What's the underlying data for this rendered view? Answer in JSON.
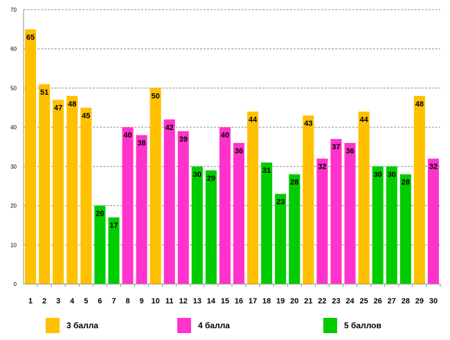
{
  "chart_data": {
    "type": "bar",
    "title": "",
    "xlabel": "",
    "ylabel": "",
    "ylim": [
      0,
      70
    ],
    "yticks": [
      0,
      10,
      20,
      30,
      40,
      50,
      60,
      70
    ],
    "grid": true,
    "legend_position": "bottom",
    "categories": [
      "1",
      "2",
      "3",
      "4",
      "5",
      "6",
      "7",
      "8",
      "9",
      "10",
      "11",
      "12",
      "13",
      "14",
      "15",
      "16",
      "17",
      "18",
      "19",
      "20",
      "21",
      "22",
      "23",
      "24",
      "25",
      "26",
      "27",
      "28",
      "29",
      "30"
    ],
    "values": [
      65,
      51,
      47,
      48,
      45,
      20,
      17,
      40,
      38,
      50,
      42,
      39,
      30,
      29,
      40,
      36,
      44,
      31,
      23,
      28,
      43,
      32,
      37,
      36,
      44,
      30,
      30,
      28,
      48,
      32
    ],
    "groups": [
      "g3",
      "g3",
      "g3",
      "g3",
      "g3",
      "g5",
      "g5",
      "g4",
      "g4",
      "g3",
      "g4",
      "g4",
      "g5",
      "g5",
      "g4",
      "g4",
      "g3",
      "g5",
      "g5",
      "g5",
      "g3",
      "g4",
      "g4",
      "g4",
      "g3",
      "g5",
      "g5",
      "g5",
      "g3",
      "g4"
    ],
    "legend": [
      {
        "key": "g3",
        "label": "3 балла",
        "color": "#FFC000"
      },
      {
        "key": "g4",
        "label": "4 балла",
        "color": "#FF33CC"
      },
      {
        "key": "g5",
        "label": "5 баллов",
        "color": "#00CC00"
      }
    ]
  }
}
